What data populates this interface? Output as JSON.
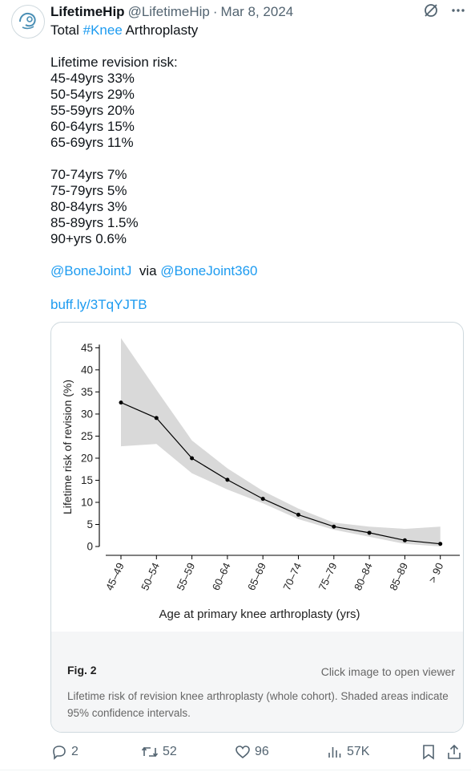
{
  "tweet": {
    "author_name": "LifetimeHip",
    "author_handle": "@LifetimeHip",
    "separator": "·",
    "date": "Mar 8, 2024",
    "title_prefix": "Total ",
    "hashtag": "#Knee",
    "title_suffix": " Arthroplasty",
    "risk_heading": "Lifetime revision risk:",
    "risk_lines_a": [
      "45-49yrs 33%",
      "50-54yrs 29%",
      "55-59yrs 20%",
      "60-64yrs 15%",
      "65-69yrs 11%"
    ],
    "risk_lines_b": [
      "70-74yrs 7%",
      "75-79yrs 5%",
      "80-84yrs 3%",
      "85-89yrs 1.5%",
      "90+yrs 0.6%"
    ],
    "mention_1": "@BoneJointJ",
    "via_text": "  via ",
    "mention_2": "@BoneJoint360",
    "link": "buff.ly/3TqYJTB"
  },
  "figure": {
    "fig_label": "Fig. 2",
    "open_viewer": "Click image to open viewer",
    "caption": "Lifetime risk of revision knee arthroplasty (whole cohort). Shaded areas indicate 95% confidence intervals."
  },
  "chart_data": {
    "type": "line",
    "xlabel": "Age at primary knee arthroplasty (yrs)",
    "ylabel": "Lifetime risk of revision (%)",
    "categories": [
      "45–49",
      "50–54",
      "55–59",
      "60–64",
      "65–69",
      "70–74",
      "75–79",
      "80–84",
      "85–89",
      "> 90"
    ],
    "values": [
      32.6,
      29.1,
      20.0,
      15.1,
      10.8,
      7.2,
      4.5,
      3.1,
      1.4,
      0.6
    ],
    "ci_upper": [
      47.2,
      35.5,
      24.0,
      17.7,
      12.6,
      8.6,
      5.4,
      4.5,
      4.0,
      4.5
    ],
    "ci_lower": [
      22.7,
      23.2,
      16.6,
      12.9,
      9.8,
      6.2,
      3.8,
      2.2,
      0.6,
      0.0
    ],
    "yticks": [
      0,
      5,
      10,
      15,
      20,
      25,
      30,
      35,
      40,
      45
    ],
    "ylim": [
      0,
      45
    ],
    "grid": false,
    "colors": {
      "band": "#d9d9d9",
      "line": "#000000"
    }
  },
  "actions": {
    "replies": "2",
    "reposts": "52",
    "likes": "96",
    "views": "57K"
  },
  "colors": {
    "link": "#1d9bf0",
    "secondary": "#536471"
  }
}
